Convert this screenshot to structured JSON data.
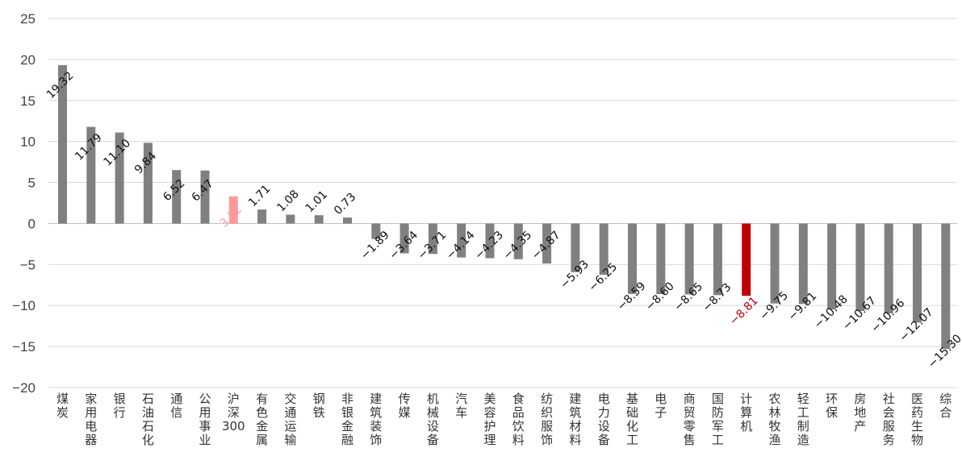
{
  "chart_data": {
    "type": "bar",
    "title": "",
    "xlabel": "",
    "ylabel": "",
    "ylim": [
      -20,
      25
    ],
    "yticks": [
      25,
      20,
      15,
      10,
      5,
      0,
      -5,
      -10,
      -15,
      -20
    ],
    "yticks_labels": [
      "25",
      "20",
      "15",
      "10",
      "5",
      "0",
      "−5",
      "−10",
      "−15",
      "−20"
    ],
    "grid": true,
    "legend": "none",
    "categories": [
      "煤炭",
      "家用电器",
      "银行",
      "石油石化",
      "通信",
      "公用事业",
      "沪深300",
      "有色金属",
      "交通运输",
      "钢铁",
      "非银金融",
      "建筑装饰",
      "传媒",
      "机械设备",
      "汽车",
      "美容护理",
      "食品饮料",
      "纺织服饰",
      "建筑材料",
      "电力设备",
      "基础化工",
      "电子",
      "商贸零售",
      "国防军工",
      "计算机",
      "农林牧渔",
      "轻工制造",
      "环保",
      "房地产",
      "社会服务",
      "医药生物",
      "综合"
    ],
    "values": [
      19.32,
      11.79,
      11.1,
      9.84,
      6.52,
      6.47,
      3.32,
      1.71,
      1.08,
      1.01,
      0.73,
      -1.89,
      -3.64,
      -3.71,
      -4.14,
      -4.23,
      -4.35,
      -4.87,
      -5.93,
      -6.25,
      -8.59,
      -8.6,
      -8.65,
      -8.73,
      -8.81,
      -9.75,
      -9.81,
      -10.48,
      -10.67,
      -10.96,
      -12.07,
      -15.3
    ],
    "data_labels": [
      "19.32",
      "11.79",
      "11.10",
      "9.84",
      "6.52",
      "6.47",
      "3.32",
      "1.71",
      "1.08",
      "1.01",
      "0.73",
      "−1.89",
      "−3.64",
      "−3.71",
      "−4.14",
      "−4.23",
      "−4.35",
      "−4.87",
      "−5.93",
      "−6.25",
      "−8.59",
      "−8.60",
      "−8.65",
      "−8.73",
      "−8.81",
      "−9.75",
      "−9.81",
      "−10.48",
      "−10.67",
      "−10.96",
      "−12.07",
      "−15.30"
    ],
    "colors": {
      "default_bar": "#808080",
      "benchmark_bar": "#ff9999",
      "benchmark_label": "#ff9999",
      "highlight_bar": "#c00000",
      "highlight_label": "#c00000",
      "label": "#111111",
      "gridline": "#d9d9d9"
    },
    "benchmark_category": "沪深300",
    "highlight_category": "计算机"
  }
}
